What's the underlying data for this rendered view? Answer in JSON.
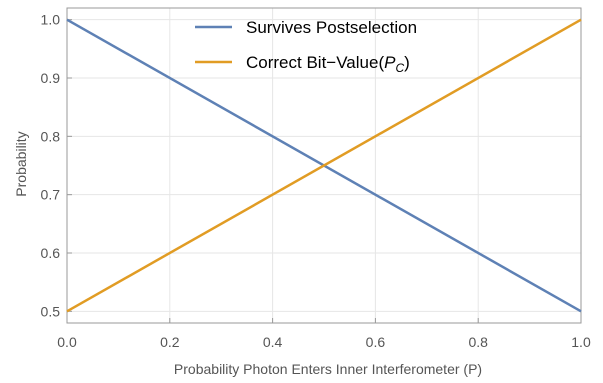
{
  "chart_data": {
    "type": "line",
    "xlabel": "Probability Photon Enters Inner Interferometer (P)",
    "ylabel": "Probability",
    "xlim": [
      0,
      1
    ],
    "ylim": [
      0.48,
      1.02
    ],
    "x_ticks": [
      "0.0",
      "0.2",
      "0.4",
      "0.6",
      "0.8",
      "1.0"
    ],
    "y_ticks": [
      "0.5",
      "0.6",
      "0.7",
      "0.8",
      "0.9",
      "1.0"
    ],
    "grid": true,
    "legend_position": "top-center",
    "series": [
      {
        "name": "Survives Postselection",
        "color": "#5e81b5",
        "x": [
          0,
          1
        ],
        "y": [
          1.0,
          0.5
        ]
      },
      {
        "name_prefix": "Correct Bit−Value(",
        "name_sym": "P",
        "name_sub": "C",
        "name_suffix": ")",
        "color": "#e19c24",
        "x": [
          0,
          1
        ],
        "y": [
          0.5,
          1.0
        ]
      }
    ]
  }
}
